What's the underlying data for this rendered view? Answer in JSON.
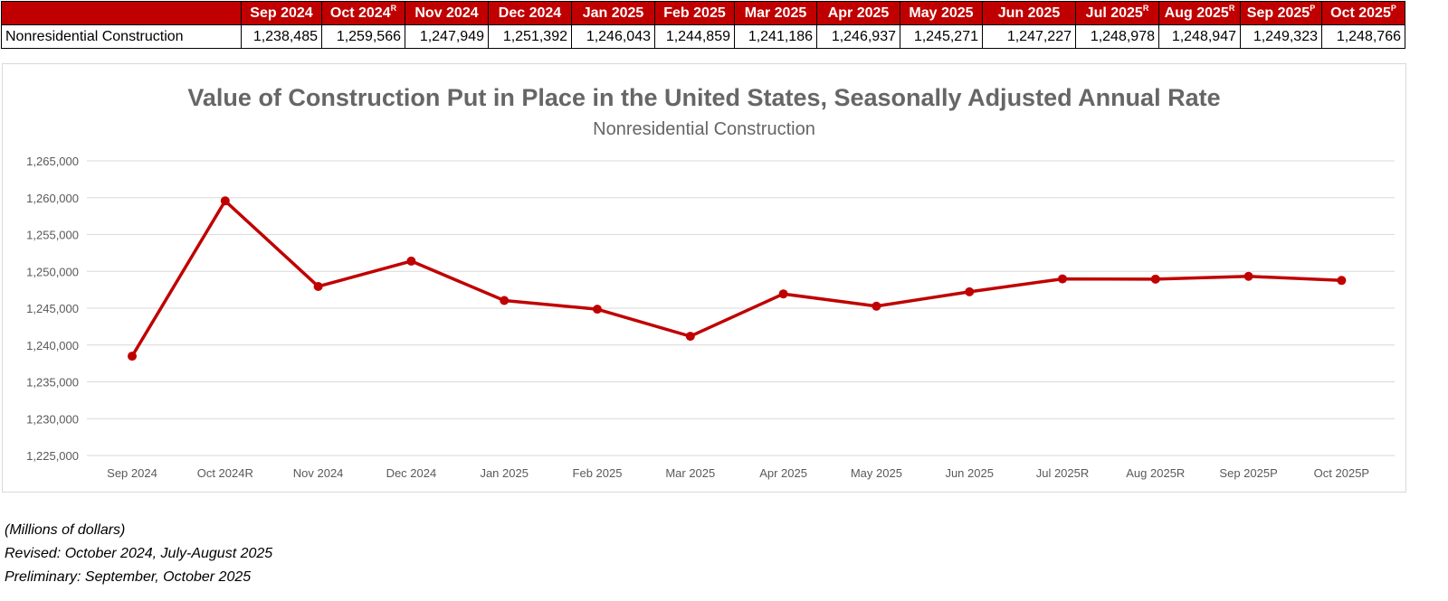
{
  "table": {
    "row_label": "Nonresidential Construction",
    "columns": [
      {
        "month": "Sep 2024",
        "flag": ""
      },
      {
        "month": "Oct 2024",
        "flag": "R"
      },
      {
        "month": "Nov 2024",
        "flag": ""
      },
      {
        "month": "Dec 2024",
        "flag": ""
      },
      {
        "month": "Jan 2025",
        "flag": ""
      },
      {
        "month": "Feb 2025",
        "flag": ""
      },
      {
        "month": "Mar 2025",
        "flag": ""
      },
      {
        "month": "Apr 2025",
        "flag": ""
      },
      {
        "month": "May 2025",
        "flag": ""
      },
      {
        "month": "Jun 2025",
        "flag": ""
      },
      {
        "month": "Jul 2025",
        "flag": "R"
      },
      {
        "month": "Aug 2025",
        "flag": "R"
      },
      {
        "month": "Sep 2025",
        "flag": "P"
      },
      {
        "month": "Oct 2025",
        "flag": "P"
      }
    ],
    "values": [
      "1,238,485",
      "1,259,566",
      "1,247,949",
      "1,251,392",
      "1,246,043",
      "1,244,859",
      "1,241,186",
      "1,246,937",
      "1,245,271",
      "1,247,227",
      "1,248,978",
      "1,248,947",
      "1,249,323",
      "1,248,766"
    ]
  },
  "chart_data": {
    "type": "line",
    "title": "Value of Construction Put in Place in the United States, Seasonally Adjusted Annual Rate",
    "subtitle": "Nonresidential Construction",
    "categories": [
      "Sep 2024",
      "Oct 2024R",
      "Nov 2024",
      "Dec 2024",
      "Jan 2025",
      "Feb 2025",
      "Mar 2025",
      "Apr 2025",
      "May 2025",
      "Jun 2025",
      "Jul 2025R",
      "Aug 2025R",
      "Sep 2025P",
      "Oct 2025P"
    ],
    "values": [
      1238485,
      1259566,
      1247949,
      1251392,
      1246043,
      1244859,
      1241186,
      1246937,
      1245271,
      1247227,
      1248978,
      1248947,
      1249323,
      1248766
    ],
    "yticks": [
      "1,225,000",
      "1,230,000",
      "1,235,000",
      "1,240,000",
      "1,245,000",
      "1,250,000",
      "1,255,000",
      "1,260,000",
      "1,265,000"
    ],
    "ylim": [
      1225000,
      1265000
    ],
    "grid": true,
    "legend": "none",
    "color": "#c00000"
  },
  "notes": [
    "(Millions of dollars)",
    "Revised: October 2024, July-August 2025",
    "Preliminary: September, October 2025"
  ]
}
